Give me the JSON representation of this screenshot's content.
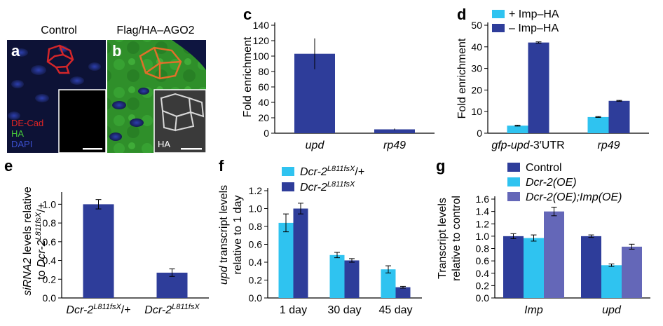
{
  "colors": {
    "dark_blue": "#2E3D9A",
    "light_blue": "#2FC3F0",
    "medium_purple": "#6467B8"
  },
  "panel_a": {
    "letter": "a",
    "title": "Control",
    "legend": [
      {
        "label": "DE-Cad",
        "color": "#E02525"
      },
      {
        "label": "HA",
        "color": "#46C83A"
      },
      {
        "label": "DAPI",
        "color": "#3B4FCC"
      }
    ]
  },
  "panel_b": {
    "letter": "b",
    "title": "Flag/HA–AGO2",
    "inset_label": "HA"
  },
  "chart_data": [
    {
      "panel": "c",
      "type": "bar",
      "categories": [
        "upd",
        "rp49"
      ],
      "values": [
        103,
        5
      ],
      "errors": [
        20,
        1
      ],
      "ylabel": "Fold enrichment",
      "ylim": [
        0,
        140
      ],
      "yticks": [
        0,
        20,
        40,
        60,
        80,
        100,
        120,
        140
      ]
    },
    {
      "panel": "d",
      "type": "bar",
      "categories": [
        "gfp-upd-3′UTR",
        "rp49"
      ],
      "series": [
        {
          "name": "+ Imp–HA",
          "color": "#2FC3F0",
          "values": [
            3.5,
            7.5
          ],
          "errors": [
            0.2,
            0.2
          ]
        },
        {
          "name": "– Imp–HA",
          "color": "#2E3D9A",
          "values": [
            42,
            15
          ],
          "errors": [
            0.3,
            0.2
          ]
        }
      ],
      "ylabel": "Fold enrichment",
      "ylim": [
        0,
        50
      ],
      "yticks": [
        0,
        10,
        20,
        30,
        40,
        50
      ],
      "legend_position": "top-left"
    },
    {
      "panel": "e",
      "type": "bar",
      "categories": [
        "Dcr-2L811fsX/+",
        "Dcr-2L811fsX"
      ],
      "values": [
        1.0,
        0.27
      ],
      "errors": [
        0.05,
        0.04
      ],
      "ylabel": "siRNA2 levels relative to Dcr-2L811fsX/+",
      "ylim": [
        0,
        1.1
      ],
      "yticks": [
        0,
        0.2,
        0.4,
        0.6,
        0.8,
        1.0
      ]
    },
    {
      "panel": "f",
      "type": "bar",
      "categories": [
        "1 day",
        "30 day",
        "45 day"
      ],
      "series": [
        {
          "name": "Dcr-2L811fsX/+",
          "color": "#2FC3F0",
          "values": [
            0.84,
            0.48,
            0.32
          ],
          "errors": [
            0.1,
            0.03,
            0.04
          ]
        },
        {
          "name": "Dcr-2L811fsX",
          "color": "#2E3D9A",
          "values": [
            1.0,
            0.42,
            0.12
          ],
          "errors": [
            0.06,
            0.02,
            0.01
          ]
        }
      ],
      "ylabel": "upd transcript levels relative to 1 day",
      "ylim": [
        0,
        1.2
      ],
      "yticks": [
        0,
        0.2,
        0.4,
        0.6,
        0.8,
        1.0,
        1.2
      ],
      "legend_position": "top"
    },
    {
      "panel": "g",
      "type": "bar",
      "categories": [
        "Imp",
        "upd"
      ],
      "series": [
        {
          "name": "Control",
          "color": "#2E3D9A",
          "values": [
            1.0,
            1.0
          ],
          "errors": [
            0.04,
            0.02
          ]
        },
        {
          "name": "Dcr-2(OE)",
          "color": "#2FC3F0",
          "values": [
            0.97,
            0.53
          ],
          "errors": [
            0.05,
            0.02
          ]
        },
        {
          "name": "Dcr-2(OE);Imp(OE)",
          "color": "#6467B8",
          "values": [
            1.4,
            0.83
          ],
          "errors": [
            0.07,
            0.04
          ]
        }
      ],
      "ylabel": "Transcript levels relative to control",
      "ylim": [
        0,
        1.6
      ],
      "yticks": [
        0,
        0.2,
        0.4,
        0.6,
        0.8,
        1.0,
        1.2,
        1.4,
        1.6
      ],
      "legend_position": "top"
    }
  ]
}
